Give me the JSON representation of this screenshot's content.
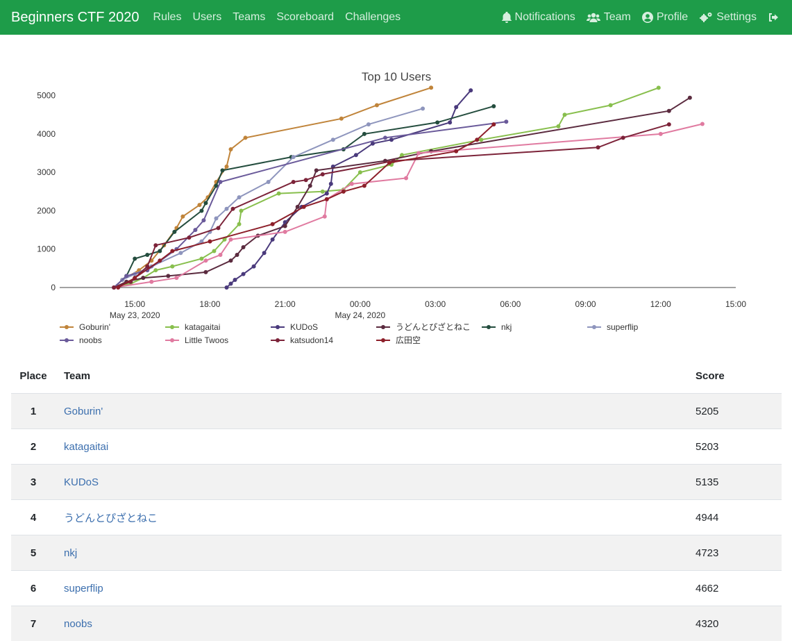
{
  "nav": {
    "brand": "Beginners CTF 2020",
    "links": [
      "Rules",
      "Users",
      "Teams",
      "Scoreboard",
      "Challenges"
    ],
    "right": [
      "Notifications",
      "Team",
      "Profile",
      "Settings"
    ]
  },
  "colors": {
    "navbar": "#1e9c49",
    "link": "#3c6fae"
  },
  "chart_data": {
    "type": "line",
    "title": "Top 10 Users",
    "xlabel": "",
    "ylabel": "",
    "ylim": [
      0,
      5500
    ],
    "yticks": [
      0,
      1000,
      2000,
      3000,
      4000,
      5000
    ],
    "xlim": [
      "2020-05-23 12:00",
      "2020-05-24 15:00"
    ],
    "xticks": [
      {
        "t": "2020-05-23 15:00",
        "label": "15:00",
        "sub": "May 23, 2020"
      },
      {
        "t": "2020-05-23 18:00",
        "label": "18:00",
        "sub": ""
      },
      {
        "t": "2020-05-23 21:00",
        "label": "21:00",
        "sub": ""
      },
      {
        "t": "2020-05-24 00:00",
        "label": "00:00",
        "sub": "May 24, 2020"
      },
      {
        "t": "2020-05-24 03:00",
        "label": "03:00",
        "sub": ""
      },
      {
        "t": "2020-05-24 06:00",
        "label": "06:00",
        "sub": ""
      },
      {
        "t": "2020-05-24 09:00",
        "label": "09:00",
        "sub": ""
      },
      {
        "t": "2020-05-24 12:00",
        "label": "12:00",
        "sub": ""
      },
      {
        "t": "2020-05-24 15:00",
        "label": "15:00",
        "sub": ""
      }
    ],
    "grid": false,
    "legend": "bottom",
    "series": [
      {
        "name": "Goburin'",
        "color": "#c0843a",
        "points": [
          [
            "2020-05-23 14:10",
            0
          ],
          [
            "2020-05-23 14:30",
            200
          ],
          [
            "2020-05-23 15:10",
            450
          ],
          [
            "2020-05-23 15:40",
            700
          ],
          [
            "2020-05-23 16:10",
            1100
          ],
          [
            "2020-05-23 16:40",
            1550
          ],
          [
            "2020-05-23 16:55",
            1850
          ],
          [
            "2020-05-23 17:35",
            2150
          ],
          [
            "2020-05-23 17:55",
            2350
          ],
          [
            "2020-05-23 18:15",
            2750
          ],
          [
            "2020-05-23 18:40",
            3150
          ],
          [
            "2020-05-23 18:50",
            3600
          ],
          [
            "2020-05-23 19:25",
            3900
          ],
          [
            "2020-05-23 23:15",
            4400
          ],
          [
            "2020-05-24 00:40",
            4750
          ],
          [
            "2020-05-24 02:50",
            5205
          ]
        ]
      },
      {
        "name": "katagaitai",
        "color": "#88bf4d",
        "points": [
          [
            "2020-05-23 14:10",
            0
          ],
          [
            "2020-05-23 14:50",
            100
          ],
          [
            "2020-05-23 15:20",
            250
          ],
          [
            "2020-05-23 15:50",
            450
          ],
          [
            "2020-05-23 16:30",
            550
          ],
          [
            "2020-05-23 17:40",
            750
          ],
          [
            "2020-05-23 18:10",
            950
          ],
          [
            "2020-05-23 18:35",
            1250
          ],
          [
            "2020-05-23 19:10",
            1650
          ],
          [
            "2020-05-23 19:15",
            2000
          ],
          [
            "2020-05-23 20:45",
            2450
          ],
          [
            "2020-05-23 22:30",
            2500
          ],
          [
            "2020-05-23 23:20",
            2550
          ],
          [
            "2020-05-24 00:00",
            3000
          ],
          [
            "2020-05-24 01:15",
            3200
          ],
          [
            "2020-05-24 01:40",
            3450
          ],
          [
            "2020-05-24 04:50",
            3850
          ],
          [
            "2020-05-24 07:55",
            4200
          ],
          [
            "2020-05-24 08:10",
            4500
          ],
          [
            "2020-05-24 10:00",
            4750
          ],
          [
            "2020-05-24 11:55",
            5203
          ]
        ]
      },
      {
        "name": "KUDoS",
        "color": "#4a3a7c",
        "points": [
          [
            "2020-05-23 18:40",
            0
          ],
          [
            "2020-05-23 18:50",
            100
          ],
          [
            "2020-05-23 19:00",
            200
          ],
          [
            "2020-05-23 19:20",
            350
          ],
          [
            "2020-05-23 19:45",
            550
          ],
          [
            "2020-05-23 20:10",
            900
          ],
          [
            "2020-05-23 20:30",
            1250
          ],
          [
            "2020-05-23 21:00",
            1700
          ],
          [
            "2020-05-23 21:40",
            2100
          ],
          [
            "2020-05-23 22:40",
            2450
          ],
          [
            "2020-05-23 22:50",
            2700
          ],
          [
            "2020-05-23 22:55",
            3150
          ],
          [
            "2020-05-23 23:50",
            3450
          ],
          [
            "2020-05-24 00:30",
            3750
          ],
          [
            "2020-05-24 01:15",
            3850
          ],
          [
            "2020-05-24 03:35",
            4300
          ],
          [
            "2020-05-24 03:50",
            4700
          ],
          [
            "2020-05-24 04:25",
            5135
          ]
        ]
      },
      {
        "name": "うどんとぴざとねこ",
        "color": "#5b2b3f",
        "points": [
          [
            "2020-05-23 14:10",
            0
          ],
          [
            "2020-05-23 14:40",
            150
          ],
          [
            "2020-05-23 15:20",
            250
          ],
          [
            "2020-05-23 16:20",
            300
          ],
          [
            "2020-05-23 17:50",
            400
          ],
          [
            "2020-05-23 18:50",
            700
          ],
          [
            "2020-05-23 19:05",
            850
          ],
          [
            "2020-05-23 19:20",
            1050
          ],
          [
            "2020-05-23 19:55",
            1350
          ],
          [
            "2020-05-23 21:00",
            1600
          ],
          [
            "2020-05-23 21:30",
            2100
          ],
          [
            "2020-05-23 22:00",
            2650
          ],
          [
            "2020-05-23 22:15",
            3050
          ],
          [
            "2020-05-24 01:00",
            3300
          ],
          [
            "2020-05-24 02:50",
            3550
          ],
          [
            "2020-05-24 12:20",
            4600
          ],
          [
            "2020-05-24 13:10",
            4944
          ]
        ]
      },
      {
        "name": "nkj",
        "color": "#244d3e",
        "points": [
          [
            "2020-05-23 14:10",
            0
          ],
          [
            "2020-05-23 14:40",
            300
          ],
          [
            "2020-05-23 15:00",
            750
          ],
          [
            "2020-05-23 15:30",
            850
          ],
          [
            "2020-05-23 16:00",
            950
          ],
          [
            "2020-05-23 16:35",
            1450
          ],
          [
            "2020-05-23 17:40",
            2000
          ],
          [
            "2020-05-23 17:50",
            2200
          ],
          [
            "2020-05-23 18:15",
            2650
          ],
          [
            "2020-05-23 18:30",
            3050
          ],
          [
            "2020-05-23 21:15",
            3400
          ],
          [
            "2020-05-23 23:20",
            3600
          ],
          [
            "2020-05-24 00:10",
            4000
          ],
          [
            "2020-05-24 03:05",
            4300
          ],
          [
            "2020-05-24 05:20",
            4723
          ]
        ]
      },
      {
        "name": "superflip",
        "color": "#8e95bd",
        "points": [
          [
            "2020-05-23 14:10",
            0
          ],
          [
            "2020-05-23 14:30",
            200
          ],
          [
            "2020-05-23 15:00",
            350
          ],
          [
            "2020-05-23 15:40",
            550
          ],
          [
            "2020-05-23 16:50",
            900
          ],
          [
            "2020-05-23 17:40",
            1200
          ],
          [
            "2020-05-23 18:00",
            1450
          ],
          [
            "2020-05-23 18:15",
            1800
          ],
          [
            "2020-05-23 18:40",
            2050
          ],
          [
            "2020-05-23 19:10",
            2350
          ],
          [
            "2020-05-23 20:20",
            2750
          ],
          [
            "2020-05-23 21:20",
            3400
          ],
          [
            "2020-05-23 22:55",
            3850
          ],
          [
            "2020-05-24 00:20",
            4250
          ],
          [
            "2020-05-24 02:30",
            4662
          ]
        ]
      },
      {
        "name": "noobs",
        "color": "#6a5a9a",
        "points": [
          [
            "2020-05-23 14:10",
            0
          ],
          [
            "2020-05-23 14:40",
            300
          ],
          [
            "2020-05-23 15:30",
            450
          ],
          [
            "2020-05-23 16:40",
            1000
          ],
          [
            "2020-05-23 17:25",
            1500
          ],
          [
            "2020-05-23 17:45",
            1750
          ],
          [
            "2020-05-23 18:25",
            2750
          ],
          [
            "2020-05-24 01:00",
            3900
          ],
          [
            "2020-05-24 05:50",
            4320
          ]
        ]
      },
      {
        "name": "Little Twoos",
        "color": "#e07aa0",
        "points": [
          [
            "2020-05-23 14:10",
            0
          ],
          [
            "2020-05-23 15:40",
            150
          ],
          [
            "2020-05-23 16:40",
            250
          ],
          [
            "2020-05-23 17:50",
            700
          ],
          [
            "2020-05-23 18:25",
            850
          ],
          [
            "2020-05-23 18:50",
            1250
          ],
          [
            "2020-05-23 21:00",
            1450
          ],
          [
            "2020-05-23 22:35",
            1850
          ],
          [
            "2020-05-23 22:40",
            2300
          ],
          [
            "2020-05-23 23:40",
            2700
          ],
          [
            "2020-05-24 01:50",
            2850
          ],
          [
            "2020-05-24 02:20",
            3500
          ],
          [
            "2020-05-24 12:00",
            4000
          ],
          [
            "2020-05-24 13:40",
            4260
          ]
        ]
      },
      {
        "name": "katsudon14",
        "color": "#7c2339",
        "points": [
          [
            "2020-05-23 14:10",
            0
          ],
          [
            "2020-05-23 14:50",
            150
          ],
          [
            "2020-05-23 15:30",
            550
          ],
          [
            "2020-05-23 15:50",
            1100
          ],
          [
            "2020-05-23 17:10",
            1300
          ],
          [
            "2020-05-23 18:20",
            1550
          ],
          [
            "2020-05-23 18:55",
            2050
          ],
          [
            "2020-05-23 21:20",
            2750
          ],
          [
            "2020-05-23 21:50",
            2800
          ],
          [
            "2020-05-23 22:30",
            2950
          ],
          [
            "2020-05-24 01:20",
            3300
          ],
          [
            "2020-05-24 09:30",
            3650
          ],
          [
            "2020-05-24 10:30",
            3900
          ],
          [
            "2020-05-24 12:20",
            4250
          ]
        ]
      },
      {
        "name": "広田空",
        "color": "#8d1f2a",
        "points": [
          [
            "2020-05-23 14:20",
            0
          ],
          [
            "2020-05-23 15:00",
            250
          ],
          [
            "2020-05-23 16:00",
            700
          ],
          [
            "2020-05-23 16:30",
            950
          ],
          [
            "2020-05-23 18:00",
            1200
          ],
          [
            "2020-05-23 20:30",
            1650
          ],
          [
            "2020-05-23 21:45",
            2100
          ],
          [
            "2020-05-23 22:40",
            2300
          ],
          [
            "2020-05-23 23:20",
            2500
          ],
          [
            "2020-05-24 00:10",
            2650
          ],
          [
            "2020-05-24 01:10",
            3250
          ],
          [
            "2020-05-24 03:50",
            3550
          ],
          [
            "2020-05-24 04:40",
            3850
          ],
          [
            "2020-05-24 05:20",
            4250
          ]
        ]
      }
    ]
  },
  "table": {
    "headers": {
      "place": "Place",
      "team": "Team",
      "score": "Score"
    },
    "rows": [
      {
        "place": "1",
        "team": "Goburin'",
        "score": "5205"
      },
      {
        "place": "2",
        "team": "katagaitai",
        "score": "5203"
      },
      {
        "place": "3",
        "team": "KUDoS",
        "score": "5135"
      },
      {
        "place": "4",
        "team": "うどんとぴざとねこ",
        "score": "4944"
      },
      {
        "place": "5",
        "team": "nkj",
        "score": "4723"
      },
      {
        "place": "6",
        "team": "superflip",
        "score": "4662"
      },
      {
        "place": "7",
        "team": "noobs",
        "score": "4320"
      }
    ]
  }
}
